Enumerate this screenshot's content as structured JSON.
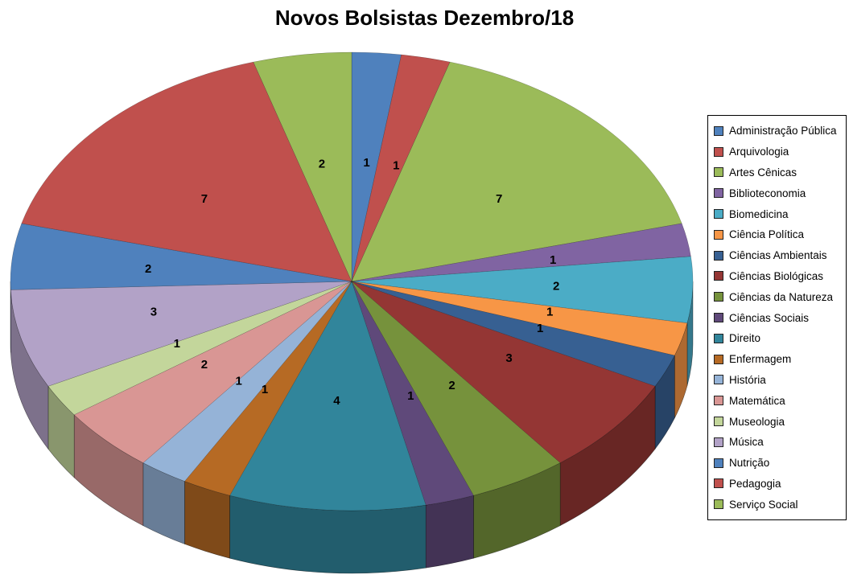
{
  "title": "Novos Bolsistas Dezembro/18",
  "chart_data": {
    "type": "pie",
    "style": "3d-pie",
    "title": "Novos Bolsistas Dezembro/18",
    "total": 43,
    "legend_position": "right",
    "data_labels": "value",
    "start_angle_deg": 0,
    "direction": "clockwise",
    "categories": [
      "Administração Pública",
      "Arquivologia",
      "Artes Cênicas",
      "Biblioteconomia",
      "Biomedicina",
      "Ciência Política",
      "Ciências Ambientais",
      "Ciências Biológicas",
      "Ciências da Natureza",
      "Ciências Sociais",
      "Direito",
      "Enfermagem",
      "História",
      "Matemática",
      "Museologia",
      "Música",
      "Nutrição",
      "Pedagogia",
      "Serviço Social"
    ],
    "values": [
      1,
      1,
      7,
      1,
      2,
      1,
      1,
      3,
      2,
      1,
      4,
      1,
      1,
      2,
      1,
      3,
      2,
      7,
      2
    ],
    "colors": [
      "#4F81BD",
      "#C0504D",
      "#9BBB59",
      "#8064A2",
      "#4BACC6",
      "#F79646",
      "#376092",
      "#943634",
      "#76923C",
      "#5F497A",
      "#31859B",
      "#B66A24",
      "#95B3D7",
      "#D99694",
      "#C3D69B",
      "#B2A2C7",
      "#4F81BD",
      "#C0504D",
      "#9BBB59"
    ]
  }
}
